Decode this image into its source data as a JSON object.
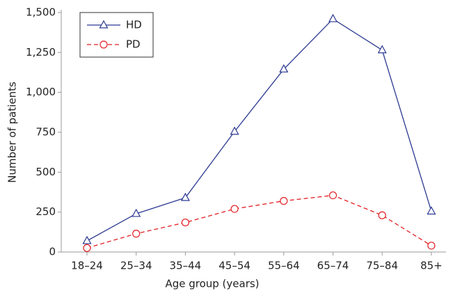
{
  "chart_data": {
    "type": "line",
    "xlabel": "Age group (years)",
    "ylabel": "Number of patients",
    "categories": [
      "18–24",
      "25–34",
      "35–44",
      "45–54",
      "55–64",
      "65–74",
      "75–84",
      "85+"
    ],
    "series": [
      {
        "name": "HD",
        "color": "#2b3990",
        "marker": "triangle",
        "dash": false,
        "values": [
          70,
          240,
          340,
          755,
          1145,
          1460,
          1265,
          255
        ]
      },
      {
        "name": "PD",
        "color": "#e31e24",
        "marker": "circle",
        "dash": true,
        "values": [
          25,
          115,
          185,
          270,
          320,
          355,
          230,
          40
        ]
      }
    ],
    "ylim": [
      0,
      1500
    ],
    "yticks": [
      0,
      250,
      500,
      750,
      {
        "value": 1000,
        "label": "1,000"
      },
      {
        "value": 1250,
        "label": "1,250"
      },
      {
        "value": 1500,
        "label": "1,500"
      }
    ],
    "legend": "top-left"
  }
}
